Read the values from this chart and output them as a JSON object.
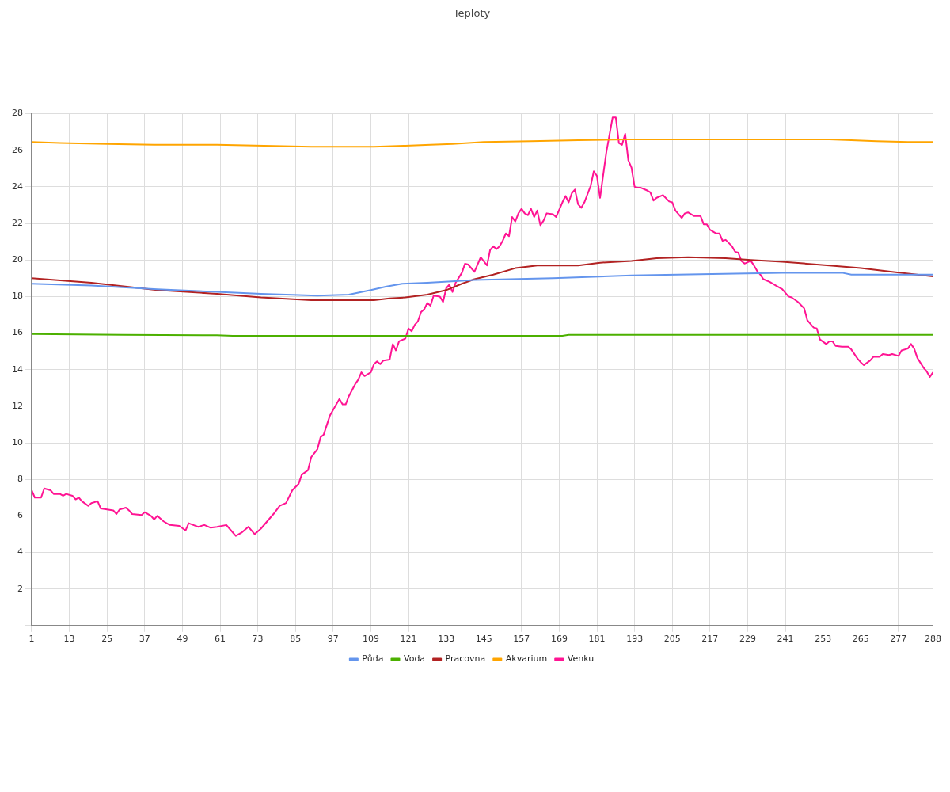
{
  "chart_data": {
    "type": "line",
    "title": "Teploty",
    "xlim": [
      1,
      288
    ],
    "xticks": [
      1,
      13,
      25,
      37,
      49,
      61,
      73,
      85,
      97,
      109,
      121,
      133,
      145,
      157,
      169,
      181,
      193,
      205,
      217,
      229,
      241,
      253,
      265,
      277,
      288
    ],
    "ylim": [
      0,
      28
    ],
    "yticks": [
      {
        "value": 0,
        "label": null
      },
      2,
      4,
      6,
      8,
      10,
      12,
      14,
      16,
      18,
      20,
      22,
      24,
      26,
      28
    ],
    "grid": true,
    "legend": "bottom",
    "series": [
      {
        "name": "Půda",
        "color": "#6495ed",
        "x": [
          1,
          20,
          41,
          60,
          74,
          92,
          102,
          109,
          114,
          119,
          127,
          137,
          142,
          167,
          192,
          225,
          240,
          259,
          262,
          288
        ],
        "values": [
          18.7,
          18.6,
          18.4,
          18.25,
          18.15,
          18.05,
          18.1,
          18.35,
          18.55,
          18.7,
          18.75,
          18.85,
          18.9,
          19.0,
          19.15,
          19.25,
          19.3,
          19.3,
          19.2,
          19.2
        ]
      },
      {
        "name": "Voda",
        "color": "#4cb000",
        "x": [
          1,
          30,
          60,
          65,
          170,
          172,
          288
        ],
        "values": [
          15.95,
          15.9,
          15.88,
          15.85,
          15.85,
          15.9,
          15.9
        ]
      },
      {
        "name": "Pracovna",
        "color": "#b22222",
        "x": [
          1,
          20,
          41,
          60,
          74,
          90,
          110,
          115,
          120,
          127,
          133,
          138,
          142,
          148,
          155,
          162,
          175,
          182,
          192,
          200,
          210,
          222,
          230,
          240,
          255,
          265,
          275,
          288
        ],
        "values": [
          19.0,
          18.75,
          18.35,
          18.15,
          17.95,
          17.8,
          17.8,
          17.9,
          17.95,
          18.1,
          18.35,
          18.7,
          18.95,
          19.2,
          19.55,
          19.7,
          19.7,
          19.85,
          19.95,
          20.1,
          20.15,
          20.1,
          20.0,
          19.9,
          19.7,
          19.55,
          19.35,
          19.1
        ]
      },
      {
        "name": "Akvarium",
        "color": "#ffa500",
        "x": [
          1,
          10,
          25,
          40,
          60,
          75,
          90,
          110,
          120,
          128,
          135,
          145,
          160,
          175,
          190,
          210,
          240,
          255,
          262,
          270,
          280,
          288
        ],
        "values": [
          26.45,
          26.4,
          26.35,
          26.3,
          26.3,
          26.25,
          26.2,
          26.2,
          26.25,
          26.3,
          26.35,
          26.45,
          26.5,
          26.55,
          26.6,
          26.6,
          26.6,
          26.6,
          26.55,
          26.5,
          26.45,
          26.45
        ]
      },
      {
        "name": "Venku",
        "color": "#ff1493",
        "x": [
          1,
          2,
          4,
          5,
          7,
          8,
          10,
          11,
          12,
          14,
          15,
          16,
          17,
          19,
          20,
          22,
          23,
          25,
          27,
          28,
          29,
          31,
          32,
          33,
          36,
          37,
          39,
          40,
          41,
          43,
          45,
          48,
          50,
          51,
          54,
          56,
          58,
          60,
          63,
          64,
          66,
          68,
          70,
          72,
          74,
          76,
          78,
          80,
          82,
          84,
          86,
          87,
          89,
          90,
          92,
          93,
          94,
          96,
          97,
          99,
          100,
          101,
          102,
          104,
          105,
          106,
          107,
          109,
          110,
          111,
          112,
          113,
          115,
          116,
          117,
          118,
          120,
          121,
          122,
          123,
          124,
          125,
          126,
          127,
          128,
          129,
          131,
          132,
          133,
          134,
          135,
          136,
          138,
          139,
          140,
          142,
          144,
          146,
          147,
          148,
          149,
          150,
          151,
          152,
          153,
          154,
          155,
          156,
          157,
          158,
          159,
          160,
          161,
          162,
          163,
          164,
          165,
          167,
          168,
          170,
          171,
          172,
          173,
          174,
          175,
          176,
          177,
          179,
          180,
          181,
          182,
          184,
          186,
          187,
          188,
          189,
          190,
          191,
          192,
          193,
          194,
          195,
          197,
          198,
          199,
          200,
          202,
          204,
          205,
          206,
          208,
          209,
          210,
          212,
          214,
          215,
          216,
          217,
          219,
          220,
          221,
          222,
          224,
          225,
          226,
          227,
          228,
          230,
          231,
          232,
          233,
          234,
          236,
          238,
          240,
          242,
          243,
          245,
          247,
          248,
          250,
          251,
          252,
          254,
          255,
          256,
          257,
          259,
          261,
          262,
          264,
          265,
          266,
          268,
          269,
          271,
          272,
          274,
          275,
          277,
          278,
          280,
          281,
          282,
          283,
          285,
          286,
          287,
          288
        ],
        "values": [
          7.4,
          7.0,
          7.0,
          7.5,
          7.4,
          7.2,
          7.2,
          7.1,
          7.2,
          7.1,
          6.9,
          7.0,
          6.8,
          6.55,
          6.7,
          6.8,
          6.4,
          6.35,
          6.3,
          6.1,
          6.35,
          6.45,
          6.3,
          6.1,
          6.05,
          6.2,
          6.0,
          5.8,
          6.0,
          5.7,
          5.5,
          5.45,
          5.2,
          5.6,
          5.4,
          5.5,
          5.35,
          5.4,
          5.5,
          5.3,
          4.9,
          5.1,
          5.4,
          5.0,
          5.3,
          5.7,
          6.1,
          6.55,
          6.7,
          7.4,
          7.75,
          8.25,
          8.5,
          9.2,
          9.65,
          10.3,
          10.45,
          11.5,
          11.8,
          12.4,
          12.1,
          12.1,
          12.55,
          13.2,
          13.45,
          13.85,
          13.65,
          13.85,
          14.3,
          14.45,
          14.3,
          14.5,
          14.55,
          15.4,
          15.05,
          15.55,
          15.7,
          16.25,
          16.1,
          16.45,
          16.65,
          17.15,
          17.3,
          17.65,
          17.5,
          18.05,
          18.0,
          17.7,
          18.45,
          18.65,
          18.25,
          18.75,
          19.3,
          19.8,
          19.75,
          19.35,
          20.15,
          19.7,
          20.55,
          20.75,
          20.6,
          20.75,
          21.05,
          21.45,
          21.3,
          22.35,
          22.1,
          22.55,
          22.8,
          22.55,
          22.45,
          22.8,
          22.35,
          22.7,
          21.9,
          22.15,
          22.55,
          22.5,
          22.35,
          23.15,
          23.5,
          23.15,
          23.65,
          23.85,
          23.05,
          22.85,
          23.15,
          24.05,
          24.85,
          24.6,
          23.4,
          25.9,
          27.8,
          27.8,
          26.4,
          26.3,
          26.9,
          25.45,
          25.05,
          24.0,
          23.95,
          23.95,
          23.8,
          23.7,
          23.25,
          23.4,
          23.55,
          23.2,
          23.15,
          22.7,
          22.3,
          22.55,
          22.6,
          22.4,
          22.4,
          21.95,
          21.95,
          21.65,
          21.45,
          21.45,
          21.05,
          21.1,
          20.75,
          20.45,
          20.4,
          19.95,
          19.8,
          19.95,
          19.7,
          19.4,
          19.2,
          18.95,
          18.8,
          18.6,
          18.4,
          18.0,
          17.95,
          17.7,
          17.35,
          16.7,
          16.3,
          16.25,
          15.65,
          15.4,
          15.55,
          15.55,
          15.3,
          15.25,
          15.25,
          15.1,
          14.6,
          14.4,
          14.25,
          14.5,
          14.7,
          14.7,
          14.85,
          14.8,
          14.85,
          14.75,
          15.05,
          15.15,
          15.4,
          15.15,
          14.65,
          14.1,
          13.9,
          13.6,
          13.85
        ]
      }
    ]
  }
}
